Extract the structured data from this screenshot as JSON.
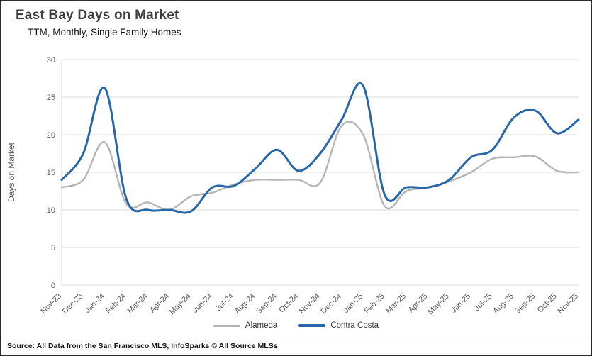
{
  "header": {
    "title": "East Bay Days on Market",
    "subtitle": "TTM, Monthly, Single Family Homes"
  },
  "chart_data": {
    "type": "line",
    "title": "East Bay Days on Market",
    "subtitle": "TTM, Monthly, Single Family Homes",
    "ylabel": "Days on Market",
    "xlabel": "",
    "ylim": [
      0,
      30
    ],
    "yticks": [
      0,
      5,
      10,
      15,
      20,
      25,
      30
    ],
    "grid": true,
    "legend_position": "bottom",
    "categories": [
      "Nov-23",
      "Dec-23",
      "Jan-24",
      "Feb-24",
      "Mar-24",
      "Apr-24",
      "May-24",
      "Jun-24",
      "Jul-24",
      "Aug-24",
      "Sep-24",
      "Oct-24",
      "Nov-24",
      "Dec-24",
      "Jan-25",
      "Feb-25",
      "Mar-25",
      "Apr-25",
      "May-25",
      "Jun-25",
      "Jul-25",
      "Aug-25",
      "Sep-25",
      "Oct-25",
      "Nov-25"
    ],
    "series": [
      {
        "name": "Alameda",
        "color": "#b5b5b5",
        "line_width": 2.4,
        "values": [
          13,
          14,
          19,
          10.8,
          11,
          10,
          11.8,
          12.3,
          13.4,
          14,
          14,
          14,
          13.6,
          21.2,
          20,
          10.5,
          12.5,
          13,
          13.8,
          15,
          16.8,
          17,
          17.1,
          15.2,
          15
        ]
      },
      {
        "name": "Contra Costa",
        "color": "#2766a9",
        "line_width": 3,
        "values": [
          14,
          17.5,
          26.2,
          11.5,
          10,
          10,
          9.8,
          13,
          13.2,
          15.5,
          18,
          15.2,
          17.5,
          22,
          26.5,
          12,
          13,
          13,
          14,
          17,
          18,
          22.3,
          23.2,
          20.2,
          22
        ]
      }
    ],
    "axis_text_color": "#595959",
    "grid_color": "#d9d9d9"
  },
  "footer": {
    "source": "Source: All Data from the San Francisco MLS, InfoSparks © All Source MLSs"
  }
}
